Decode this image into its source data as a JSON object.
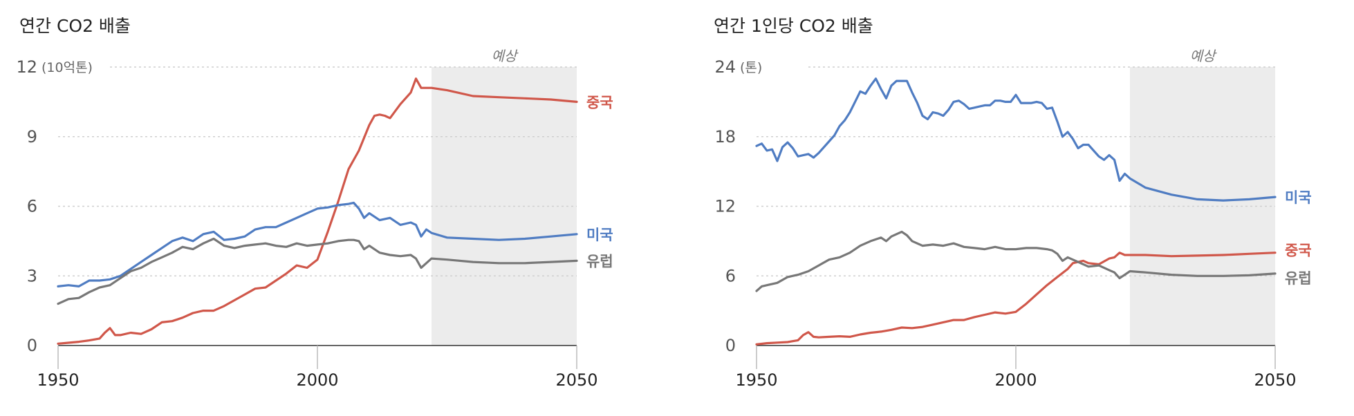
{
  "chart_data": [
    {
      "type": "line",
      "title": "연간 CO2 배출",
      "unit": "(10억톤)",
      "projection_label": "예상",
      "projection_start": 2022,
      "xlim": [
        1950,
        2050
      ],
      "ylim": [
        0,
        12
      ],
      "yticks": [
        "0",
        "3",
        "6",
        "9",
        "12"
      ],
      "xticks": [
        "1950",
        "2000",
        "2050"
      ],
      "grid": true,
      "series": [
        {
          "name": "중국",
          "color": "#d0574a",
          "x": [
            1950,
            1952,
            1954,
            1956,
            1958,
            1959,
            1960,
            1961,
            1962,
            1964,
            1966,
            1968,
            1970,
            1972,
            1974,
            1976,
            1978,
            1980,
            1982,
            1984,
            1986,
            1988,
            1990,
            1992,
            1994,
            1996,
            1998,
            2000,
            2002,
            2004,
            2006,
            2008,
            2010,
            2011,
            2012,
            2013,
            2014,
            2016,
            2018,
            2019,
            2020,
            2021,
            2022,
            2025,
            2030,
            2035,
            2040,
            2045,
            2050
          ],
          "values": [
            0.08,
            0.12,
            0.16,
            0.22,
            0.3,
            0.55,
            0.75,
            0.45,
            0.45,
            0.55,
            0.5,
            0.7,
            1.0,
            1.05,
            1.2,
            1.4,
            1.5,
            1.5,
            1.7,
            1.95,
            2.2,
            2.45,
            2.5,
            2.8,
            3.1,
            3.45,
            3.35,
            3.7,
            4.9,
            6.2,
            7.6,
            8.4,
            9.5,
            9.9,
            9.95,
            9.9,
            9.8,
            10.4,
            10.9,
            11.5,
            11.1,
            11.1,
            11.1,
            11.0,
            10.75,
            10.7,
            10.65,
            10.6,
            10.5
          ]
        },
        {
          "name": "미국",
          "color": "#4f7cc2",
          "x": [
            1950,
            1952,
            1954,
            1956,
            1958,
            1960,
            1962,
            1964,
            1966,
            1968,
            1970,
            1972,
            1974,
            1976,
            1978,
            1980,
            1982,
            1984,
            1986,
            1988,
            1990,
            1992,
            1994,
            1996,
            1998,
            2000,
            2002,
            2004,
            2006,
            2007,
            2008,
            2009,
            2010,
            2012,
            2014,
            2016,
            2018,
            2019,
            2020,
            2021,
            2022,
            2025,
            2030,
            2035,
            2040,
            2045,
            2050
          ],
          "values": [
            2.55,
            2.6,
            2.55,
            2.8,
            2.8,
            2.85,
            3.0,
            3.3,
            3.6,
            3.9,
            4.2,
            4.5,
            4.65,
            4.5,
            4.8,
            4.9,
            4.55,
            4.6,
            4.7,
            5.0,
            5.1,
            5.1,
            5.3,
            5.5,
            5.7,
            5.9,
            5.95,
            6.05,
            6.1,
            6.15,
            5.9,
            5.5,
            5.7,
            5.4,
            5.5,
            5.2,
            5.3,
            5.2,
            4.7,
            5.0,
            4.85,
            4.65,
            4.6,
            4.55,
            4.6,
            4.7,
            4.8
          ]
        },
        {
          "name": "유럽",
          "color": "#777777",
          "x": [
            1950,
            1952,
            1954,
            1956,
            1958,
            1960,
            1962,
            1964,
            1966,
            1968,
            1970,
            1972,
            1974,
            1976,
            1978,
            1980,
            1982,
            1984,
            1986,
            1988,
            1990,
            1992,
            1994,
            1996,
            1998,
            2000,
            2002,
            2004,
            2006,
            2007,
            2008,
            2009,
            2010,
            2012,
            2014,
            2016,
            2018,
            2019,
            2020,
            2021,
            2022,
            2025,
            2030,
            2035,
            2040,
            2045,
            2050
          ],
          "values": [
            1.8,
            2.0,
            2.05,
            2.3,
            2.5,
            2.6,
            2.9,
            3.2,
            3.35,
            3.6,
            3.8,
            4.0,
            4.25,
            4.15,
            4.4,
            4.6,
            4.3,
            4.2,
            4.3,
            4.35,
            4.4,
            4.3,
            4.25,
            4.4,
            4.3,
            4.35,
            4.4,
            4.5,
            4.55,
            4.55,
            4.5,
            4.15,
            4.3,
            4.0,
            3.9,
            3.85,
            3.9,
            3.75,
            3.35,
            3.55,
            3.75,
            3.7,
            3.6,
            3.55,
            3.55,
            3.6,
            3.65
          ]
        }
      ]
    },
    {
      "type": "line",
      "title": "연간 1인당 CO2 배출",
      "unit": "(톤)",
      "projection_label": "예상",
      "projection_start": 2022,
      "xlim": [
        1950,
        2050
      ],
      "ylim": [
        0,
        24
      ],
      "yticks": [
        "0",
        "6",
        "12",
        "18",
        "24"
      ],
      "xticks": [
        "1950",
        "2000",
        "2050"
      ],
      "grid": true,
      "series": [
        {
          "name": "미국",
          "color": "#4f7cc2",
          "x": [
            1950,
            1951,
            1952,
            1953,
            1954,
            1955,
            1956,
            1957,
            1958,
            1959,
            1960,
            1961,
            1962,
            1963,
            1964,
            1965,
            1966,
            1967,
            1968,
            1969,
            1970,
            1971,
            1972,
            1973,
            1974,
            1975,
            1976,
            1977,
            1978,
            1979,
            1980,
            1981,
            1982,
            1983,
            1984,
            1985,
            1986,
            1987,
            1988,
            1989,
            1990,
            1991,
            1992,
            1993,
            1994,
            1995,
            1996,
            1997,
            1998,
            1999,
            2000,
            2001,
            2002,
            2003,
            2004,
            2005,
            2006,
            2007,
            2008,
            2009,
            2010,
            2011,
            2012,
            2013,
            2014,
            2015,
            2016,
            2017,
            2018,
            2019,
            2020,
            2021,
            2022,
            2025,
            2030,
            2035,
            2040,
            2045,
            2050
          ],
          "values": [
            17.2,
            17.4,
            16.8,
            16.9,
            15.9,
            17.1,
            17.5,
            17.0,
            16.3,
            16.4,
            16.5,
            16.2,
            16.6,
            17.1,
            17.6,
            18.1,
            18.9,
            19.4,
            20.1,
            21.0,
            21.9,
            21.7,
            22.4,
            23.0,
            22.1,
            21.3,
            22.4,
            22.8,
            22.8,
            22.8,
            21.8,
            20.9,
            19.8,
            19.5,
            20.1,
            20.0,
            19.8,
            20.3,
            21.0,
            21.1,
            20.8,
            20.4,
            20.5,
            20.6,
            20.7,
            20.7,
            21.1,
            21.1,
            21.0,
            21.0,
            21.6,
            20.9,
            20.9,
            20.9,
            21.0,
            20.9,
            20.4,
            20.5,
            19.3,
            18.0,
            18.4,
            17.8,
            17.0,
            17.3,
            17.3,
            16.8,
            16.3,
            16.0,
            16.4,
            16.0,
            14.2,
            14.8,
            14.4,
            13.6,
            13.0,
            12.6,
            12.5,
            12.6,
            12.8
          ]
        },
        {
          "name": "중국",
          "color": "#d0574a",
          "x": [
            1950,
            1952,
            1954,
            1956,
            1958,
            1959,
            1960,
            1961,
            1962,
            1964,
            1966,
            1968,
            1970,
            1972,
            1974,
            1976,
            1978,
            1980,
            1982,
            1984,
            1986,
            1988,
            1990,
            1992,
            1994,
            1996,
            1998,
            2000,
            2002,
            2004,
            2006,
            2008,
            2010,
            2011,
            2012,
            2013,
            2014,
            2016,
            2018,
            2019,
            2020,
            2021,
            2022,
            2025,
            2030,
            2035,
            2040,
            2045,
            2050
          ],
          "values": [
            0.1,
            0.2,
            0.25,
            0.3,
            0.45,
            0.9,
            1.15,
            0.75,
            0.7,
            0.75,
            0.8,
            0.75,
            0.95,
            1.1,
            1.2,
            1.35,
            1.55,
            1.5,
            1.6,
            1.8,
            2.0,
            2.2,
            2.2,
            2.45,
            2.65,
            2.85,
            2.75,
            2.9,
            3.6,
            4.4,
            5.2,
            5.9,
            6.6,
            7.1,
            7.2,
            7.3,
            7.1,
            7.0,
            7.5,
            7.6,
            8.0,
            7.8,
            7.8,
            7.8,
            7.7,
            7.75,
            7.8,
            7.9,
            8.0
          ]
        },
        {
          "name": "유럽",
          "color": "#777777",
          "x": [
            1950,
            1951,
            1952,
            1954,
            1956,
            1958,
            1960,
            1962,
            1964,
            1966,
            1968,
            1970,
            1972,
            1974,
            1975,
            1976,
            1978,
            1979,
            1980,
            1982,
            1984,
            1986,
            1988,
            1990,
            1992,
            1994,
            1996,
            1998,
            2000,
            2002,
            2004,
            2006,
            2007,
            2008,
            2009,
            2010,
            2012,
            2014,
            2016,
            2018,
            2019,
            2020,
            2021,
            2022,
            2025,
            2030,
            2035,
            2040,
            2045,
            2050
          ],
          "values": [
            4.7,
            5.1,
            5.2,
            5.4,
            5.9,
            6.1,
            6.4,
            6.9,
            7.4,
            7.6,
            8.0,
            8.6,
            9.0,
            9.3,
            9.0,
            9.4,
            9.8,
            9.5,
            9.0,
            8.6,
            8.7,
            8.6,
            8.8,
            8.5,
            8.4,
            8.3,
            8.5,
            8.3,
            8.3,
            8.4,
            8.4,
            8.3,
            8.2,
            7.9,
            7.3,
            7.6,
            7.2,
            6.8,
            6.9,
            6.5,
            6.3,
            5.8,
            6.1,
            6.4,
            6.3,
            6.1,
            6.0,
            6.0,
            6.05,
            6.2
          ]
        }
      ]
    }
  ]
}
